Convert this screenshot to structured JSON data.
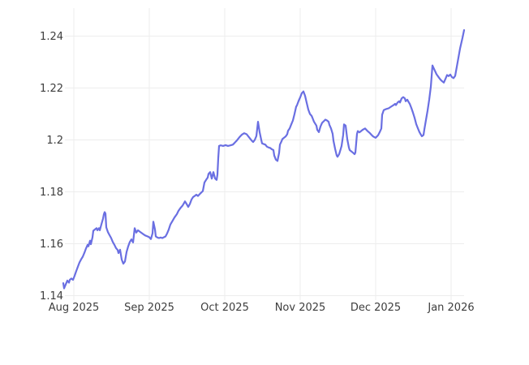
{
  "page": {
    "background": "#ffffff"
  },
  "chart_data": {
    "type": "line",
    "title": "",
    "xlabel": "",
    "ylabel": "",
    "x_unit": "months_since_2025-08-01",
    "grid": true,
    "legend": "none",
    "grid_color": "#ededed",
    "label_color": "#3d3d3d",
    "x_ticks": [
      {
        "m": 0,
        "label": "Aug 2025"
      },
      {
        "m": 1,
        "label": "Sep 2025"
      },
      {
        "m": 2,
        "label": "Oct 2025"
      },
      {
        "m": 3,
        "label": "Nov 2025"
      },
      {
        "m": 4,
        "label": "Dec 2025"
      },
      {
        "m": 5,
        "label": "Jan 2026"
      }
    ],
    "y_ticks": [
      {
        "v": 1.14,
        "label": "1.14"
      },
      {
        "v": 1.16,
        "label": "1.16"
      },
      {
        "v": 1.18,
        "label": "1.18"
      },
      {
        "v": 1.2,
        "label": "1.2"
      },
      {
        "v": 1.22,
        "label": "1.22"
      },
      {
        "v": 1.24,
        "label": "1.24"
      }
    ],
    "y_range": [
      1.1383,
      1.2508
    ],
    "x_range": [
      -0.14,
      5.172
    ],
    "series": [
      {
        "name": "exchange-rate",
        "color": "#6A6FE2",
        "points": [
          [
            -0.14,
            1.1448
          ],
          [
            -0.129,
            1.1428
          ],
          [
            -0.108,
            1.1443
          ],
          [
            -0.086,
            1.1458
          ],
          [
            -0.065,
            1.145
          ],
          [
            -0.054,
            1.1461
          ],
          [
            -0.032,
            1.1466
          ],
          [
            -0.011,
            1.1461
          ],
          [
            0.011,
            1.1477
          ],
          [
            0.032,
            1.1495
          ],
          [
            0.054,
            1.1512
          ],
          [
            0.075,
            1.1528
          ],
          [
            0.097,
            1.154
          ],
          [
            0.118,
            1.155
          ],
          [
            0.14,
            1.1565
          ],
          [
            0.161,
            1.1582
          ],
          [
            0.183,
            1.1596
          ],
          [
            0.194,
            1.159
          ],
          [
            0.215,
            1.1612
          ],
          [
            0.226,
            1.1598
          ],
          [
            0.247,
            1.1625
          ],
          [
            0.258,
            1.165
          ],
          [
            0.28,
            1.1655
          ],
          [
            0.301,
            1.166
          ],
          [
            0.312,
            1.1652
          ],
          [
            0.333,
            1.166
          ],
          [
            0.344,
            1.1652
          ],
          [
            0.366,
            1.1675
          ],
          [
            0.387,
            1.1697
          ],
          [
            0.398,
            1.1713
          ],
          [
            0.409,
            1.1722
          ],
          [
            0.419,
            1.1716
          ],
          [
            0.43,
            1.1663
          ],
          [
            0.452,
            1.1645
          ],
          [
            0.473,
            1.1633
          ],
          [
            0.495,
            1.1622
          ],
          [
            0.516,
            1.1607
          ],
          [
            0.538,
            1.1596
          ],
          [
            0.559,
            1.1583
          ],
          [
            0.581,
            1.1576
          ],
          [
            0.591,
            1.1564
          ],
          [
            0.613,
            1.1577
          ],
          [
            0.634,
            1.1539
          ],
          [
            0.656,
            1.1523
          ],
          [
            0.677,
            1.1532
          ],
          [
            0.699,
            1.1568
          ],
          [
            0.72,
            1.159
          ],
          [
            0.742,
            1.1607
          ],
          [
            0.763,
            1.1617
          ],
          [
            0.785,
            1.1605
          ],
          [
            0.806,
            1.166
          ],
          [
            0.828,
            1.1643
          ],
          [
            0.849,
            1.1652
          ],
          [
            0.882,
            1.1645
          ],
          [
            0.914,
            1.1638
          ],
          [
            0.946,
            1.1632
          ],
          [
            0.978,
            1.1628
          ],
          [
            1.0,
            1.1625
          ],
          [
            1.022,
            1.1618
          ],
          [
            1.043,
            1.164
          ],
          [
            1.054,
            1.1685
          ],
          [
            1.075,
            1.1655
          ],
          [
            1.086,
            1.1628
          ],
          [
            1.108,
            1.1624
          ],
          [
            1.129,
            1.1622
          ],
          [
            1.151,
            1.1624
          ],
          [
            1.172,
            1.1622
          ],
          [
            1.194,
            1.1625
          ],
          [
            1.215,
            1.1628
          ],
          [
            1.237,
            1.164
          ],
          [
            1.258,
            1.1655
          ],
          [
            1.28,
            1.1674
          ],
          [
            1.312,
            1.169
          ],
          [
            1.333,
            1.1701
          ],
          [
            1.366,
            1.1714
          ],
          [
            1.387,
            1.1727
          ],
          [
            1.419,
            1.174
          ],
          [
            1.441,
            1.1747
          ],
          [
            1.473,
            1.1763
          ],
          [
            1.495,
            1.1753
          ],
          [
            1.516,
            1.1742
          ],
          [
            1.538,
            1.1753
          ],
          [
            1.559,
            1.177
          ],
          [
            1.581,
            1.178
          ],
          [
            1.602,
            1.1784
          ],
          [
            1.624,
            1.1789
          ],
          [
            1.645,
            1.1784
          ],
          [
            1.677,
            1.1794
          ],
          [
            1.71,
            1.1803
          ],
          [
            1.731,
            1.1836
          ],
          [
            1.753,
            1.1846
          ],
          [
            1.774,
            1.1855
          ],
          [
            1.785,
            1.1869
          ],
          [
            1.806,
            1.1876
          ],
          [
            1.828,
            1.1851
          ],
          [
            1.849,
            1.1876
          ],
          [
            1.871,
            1.1852
          ],
          [
            1.892,
            1.1846
          ],
          [
            1.903,
            1.1867
          ],
          [
            1.914,
            1.193
          ],
          [
            1.925,
            1.1977
          ],
          [
            1.946,
            1.1979
          ],
          [
            1.978,
            1.1977
          ],
          [
            2.011,
            1.198
          ],
          [
            2.043,
            1.1977
          ],
          [
            2.075,
            1.1979
          ],
          [
            2.108,
            1.1982
          ],
          [
            2.129,
            1.1988
          ],
          [
            2.161,
            1.1998
          ],
          [
            2.194,
            1.201
          ],
          [
            2.226,
            1.202
          ],
          [
            2.258,
            1.2026
          ],
          [
            2.29,
            1.2022
          ],
          [
            2.323,
            1.201
          ],
          [
            2.355,
            1.1998
          ],
          [
            2.376,
            1.1992
          ],
          [
            2.398,
            1.2
          ],
          [
            2.419,
            1.2015
          ],
          [
            2.441,
            1.207
          ],
          [
            2.462,
            1.203
          ],
          [
            2.484,
            1.2
          ],
          [
            2.495,
            1.1987
          ],
          [
            2.516,
            1.1984
          ],
          [
            2.538,
            1.1982
          ],
          [
            2.559,
            1.1974
          ],
          [
            2.581,
            1.1971
          ],
          [
            2.602,
            1.1969
          ],
          [
            2.624,
            1.1964
          ],
          [
            2.645,
            1.1961
          ],
          [
            2.656,
            1.194
          ],
          [
            2.677,
            1.1924
          ],
          [
            2.699,
            1.1919
          ],
          [
            2.72,
            1.195
          ],
          [
            2.731,
            1.1982
          ],
          [
            2.753,
            1.1995
          ],
          [
            2.763,
            1.2003
          ],
          [
            2.785,
            1.2008
          ],
          [
            2.806,
            1.2013
          ],
          [
            2.828,
            1.2022
          ],
          [
            2.839,
            1.2035
          ],
          [
            2.86,
            1.2044
          ],
          [
            2.882,
            1.206
          ],
          [
            2.903,
            1.2075
          ],
          [
            2.925,
            1.21
          ],
          [
            2.946,
            1.2128
          ],
          [
            2.957,
            1.2133
          ],
          [
            2.978,
            1.215
          ],
          [
            3.0,
            1.2164
          ],
          [
            3.022,
            1.218
          ],
          [
            3.043,
            1.2187
          ],
          [
            3.065,
            1.217
          ],
          [
            3.086,
            1.2143
          ],
          [
            3.108,
            1.2117
          ],
          [
            3.129,
            1.21
          ],
          [
            3.151,
            1.2093
          ],
          [
            3.161,
            1.2086
          ],
          [
            3.183,
            1.207
          ],
          [
            3.194,
            1.2065
          ],
          [
            3.215,
            1.2055
          ],
          [
            3.226,
            1.2039
          ],
          [
            3.247,
            1.203
          ],
          [
            3.269,
            1.2052
          ],
          [
            3.29,
            1.2066
          ],
          [
            3.312,
            1.2072
          ],
          [
            3.333,
            1.2078
          ],
          [
            3.355,
            1.2075
          ],
          [
            3.376,
            1.207
          ],
          [
            3.387,
            1.2058
          ],
          [
            3.409,
            1.2044
          ],
          [
            3.43,
            1.2023
          ],
          [
            3.441,
            1.1997
          ],
          [
            3.462,
            1.1966
          ],
          [
            3.484,
            1.194
          ],
          [
            3.495,
            1.1935
          ],
          [
            3.516,
            1.1945
          ],
          [
            3.538,
            1.1966
          ],
          [
            3.548,
            1.1977
          ],
          [
            3.57,
            1.202
          ],
          [
            3.581,
            1.206
          ],
          [
            3.602,
            1.2055
          ],
          [
            3.624,
            1.2003
          ],
          [
            3.645,
            1.1971
          ],
          [
            3.656,
            1.1961
          ],
          [
            3.677,
            1.1956
          ],
          [
            3.699,
            1.1951
          ],
          [
            3.72,
            1.1945
          ],
          [
            3.731,
            1.1951
          ],
          [
            3.753,
            1.2023
          ],
          [
            3.763,
            1.2034
          ],
          [
            3.785,
            1.2029
          ],
          [
            3.806,
            1.2034
          ],
          [
            3.828,
            1.2039
          ],
          [
            3.86,
            1.2044
          ],
          [
            3.892,
            1.2034
          ],
          [
            3.925,
            1.2026
          ],
          [
            3.946,
            1.2019
          ],
          [
            3.968,
            1.2013
          ],
          [
            4.0,
            1.2008
          ],
          [
            4.032,
            1.2018
          ],
          [
            4.054,
            1.203
          ],
          [
            4.075,
            1.2044
          ],
          [
            4.086,
            1.2097
          ],
          [
            4.108,
            1.2115
          ],
          [
            4.14,
            1.2119
          ],
          [
            4.172,
            1.2122
          ],
          [
            4.204,
            1.2128
          ],
          [
            4.237,
            1.2134
          ],
          [
            4.258,
            1.2139
          ],
          [
            4.269,
            1.2134
          ],
          [
            4.29,
            1.2144
          ],
          [
            4.312,
            1.2149
          ],
          [
            4.323,
            1.2144
          ],
          [
            4.344,
            1.216
          ],
          [
            4.366,
            1.2165
          ],
          [
            4.387,
            1.216
          ],
          [
            4.398,
            1.2149
          ],
          [
            4.419,
            1.2155
          ],
          [
            4.441,
            1.2144
          ],
          [
            4.452,
            1.2139
          ],
          [
            4.473,
            1.2123
          ],
          [
            4.495,
            1.2105
          ],
          [
            4.516,
            1.2085
          ],
          [
            4.538,
            1.2061
          ],
          [
            4.559,
            1.2045
          ],
          [
            4.581,
            1.203
          ],
          [
            4.602,
            1.2019
          ],
          [
            4.613,
            1.2014
          ],
          [
            4.634,
            1.2019
          ],
          [
            4.645,
            1.204
          ],
          [
            4.667,
            1.2077
          ],
          [
            4.688,
            1.2113
          ],
          [
            4.71,
            1.2155
          ],
          [
            4.731,
            1.2205
          ],
          [
            4.753,
            1.2287
          ],
          [
            4.774,
            1.2273
          ],
          [
            4.806,
            1.2253
          ],
          [
            4.839,
            1.224
          ],
          [
            4.86,
            1.2232
          ],
          [
            4.882,
            1.2226
          ],
          [
            4.903,
            1.2221
          ],
          [
            4.925,
            1.2235
          ],
          [
            4.946,
            1.225
          ],
          [
            4.968,
            1.2246
          ],
          [
            4.989,
            1.2252
          ],
          [
            5.011,
            1.2242
          ],
          [
            5.032,
            1.2238
          ],
          [
            5.054,
            1.2247
          ],
          [
            5.086,
            1.2299
          ],
          [
            5.118,
            1.2352
          ],
          [
            5.151,
            1.2393
          ],
          [
            5.172,
            1.2423
          ]
        ]
      }
    ]
  }
}
